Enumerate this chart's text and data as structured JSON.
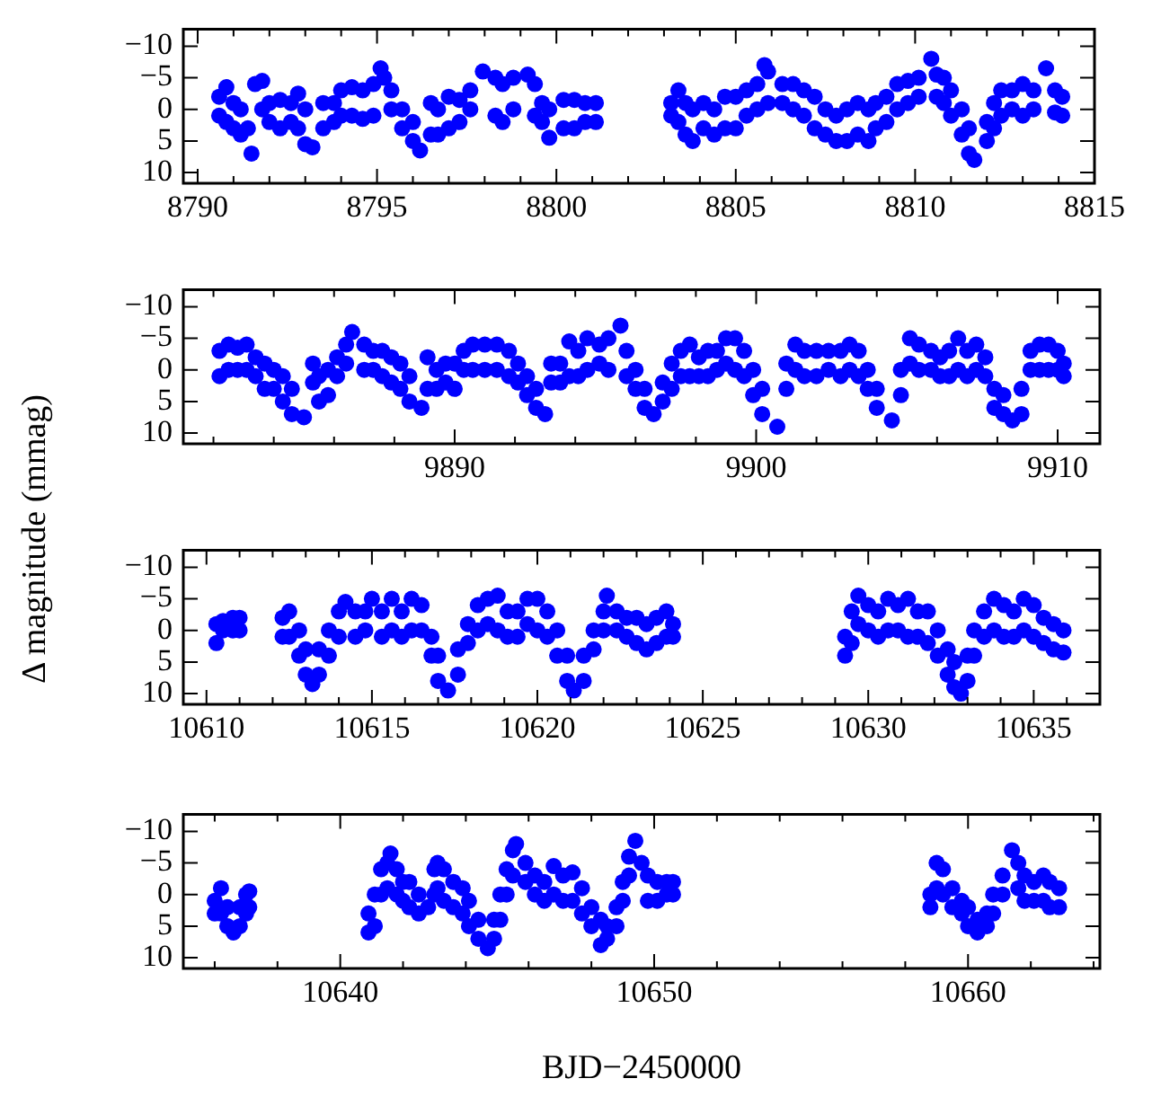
{
  "chart_data": [
    {
      "type": "scatter",
      "marker": "circle",
      "x": [
        8790.6,
        8790.6,
        8790.8,
        8790.8,
        8791.0,
        8791.0,
        8791.2,
        8791.2,
        8791.4,
        8791.5,
        8791.6,
        8791.8,
        8791.8,
        8792.0,
        8792.0,
        8792.3,
        8792.3,
        8792.6,
        8792.6,
        8792.8,
        8792.8,
        8793.0,
        8793.0,
        8793.2,
        8793.5,
        8793.5,
        8793.8,
        8793.8,
        8794.0,
        8794.0,
        8794.3,
        8794.3,
        8794.6,
        8794.6,
        8794.9,
        8794.9,
        8795.1,
        8795.2,
        8795.4,
        8795.4,
        8795.7,
        8795.7,
        8796.0,
        8796.0,
        8796.2,
        8796.5,
        8796.5,
        8796.7,
        8796.7,
        8797.0,
        8797.0,
        8797.3,
        8797.3,
        8797.6,
        8797.6,
        8797.95,
        8798.3,
        8798.3,
        8798.5,
        8798.5,
        8798.8,
        8798.8,
        8799.2,
        8799.4,
        8799.4,
        8799.6,
        8799.6,
        8799.8,
        8799.8,
        8800.2,
        8800.2,
        8800.5,
        8800.5,
        8800.8,
        8800.8,
        8801.1,
        8801.1,
        8803.2,
        8803.2,
        8803.4,
        8803.4,
        8803.6,
        8803.6,
        8803.8,
        8803.8,
        8804.1,
        8804.1,
        8804.4,
        8804.4,
        8804.7,
        8804.7,
        8805.0,
        8805.0,
        8805.3,
        8805.3,
        8805.6,
        8805.6,
        8805.8,
        8805.9,
        8805.9,
        8806.3,
        8806.3,
        8806.6,
        8806.6,
        8806.9,
        8806.9,
        8807.2,
        8807.2,
        8807.5,
        8807.5,
        8807.8,
        8807.8,
        8808.1,
        8808.1,
        8808.4,
        8808.4,
        8808.7,
        8808.7,
        8808.9,
        8808.9,
        8809.2,
        8809.2,
        8809.5,
        8809.5,
        8809.8,
        8809.8,
        8810.1,
        8810.1,
        8810.45,
        8810.6,
        8810.6,
        8810.8,
        8810.8,
        8811.0,
        8811.0,
        8811.3,
        8811.3,
        8811.5,
        8811.5,
        8811.65,
        8812.0,
        8812.0,
        8812.2,
        8812.2,
        8812.4,
        8812.4,
        8812.7,
        8812.7,
        8813.0,
        8813.0,
        8813.3,
        8813.3,
        8813.65,
        8813.9,
        8813.9,
        8814.1,
        8814.1
      ],
      "values": [
        -2,
        1,
        -3.5,
        2,
        -1,
        3,
        0,
        4,
        3,
        7,
        -4,
        -4.5,
        0,
        -1,
        2,
        -1.5,
        3,
        -1,
        2,
        -2.5,
        3,
        0,
        5.5,
        6,
        -1,
        3,
        -1,
        2,
        -3,
        1,
        -3.5,
        1,
        -3,
        1.5,
        -4,
        1,
        -6.5,
        -5,
        -3,
        0,
        0,
        3,
        2,
        5,
        6.5,
        -1,
        4,
        0,
        4,
        -2,
        3,
        -1.5,
        2,
        -3,
        0,
        -6,
        -5,
        1,
        -4,
        2,
        -5,
        0,
        -5.5,
        -4,
        1,
        -1,
        2,
        0,
        4.5,
        -1.5,
        3,
        -1.5,
        3,
        -1,
        2,
        -1,
        2,
        -1,
        1,
        -3,
        2,
        -1,
        4,
        0,
        5,
        -1,
        3,
        0,
        4,
        -2,
        3,
        -2,
        3,
        -3,
        1,
        -4,
        0,
        -7,
        -6,
        -1,
        -4,
        -1,
        -4,
        0,
        -3,
        1,
        -2,
        3,
        0,
        4,
        1,
        5,
        0,
        5,
        -1,
        4,
        0,
        5,
        -1,
        3,
        -2,
        2,
        -4,
        0,
        -4.5,
        -1,
        -5,
        -2,
        -8,
        -5.5,
        -2,
        -5,
        -1,
        -3,
        1,
        0,
        4,
        3,
        7,
        8,
        2,
        5,
        -1,
        3,
        -3,
        1,
        -3,
        0,
        -4,
        1,
        -3,
        0,
        -6.5,
        -3,
        0.5,
        -2,
        1
      ],
      "color": "#0000ff",
      "xlim": [
        8789.6,
        8815
      ],
      "ylim": [
        11.7,
        -12.7
      ],
      "yticks": [
        -10,
        -5,
        0,
        5,
        10
      ],
      "xticks": [
        8790,
        {
          "value": 8791,
          "label": null
        },
        {
          "value": 8792,
          "label": null
        },
        {
          "value": 8793,
          "label": null
        },
        {
          "value": 8794,
          "label": null
        },
        8795,
        {
          "value": 8796,
          "label": null
        },
        {
          "value": 8797,
          "label": null
        },
        {
          "value": 8798,
          "label": null
        },
        {
          "value": 8799,
          "label": null
        },
        8800,
        {
          "value": 8801,
          "label": null
        },
        {
          "value": 8802,
          "label": null
        },
        {
          "value": 8803,
          "label": null
        },
        {
          "value": 8804,
          "label": null
        },
        8805,
        {
          "value": 8806,
          "label": null
        },
        {
          "value": 8807,
          "label": null
        },
        {
          "value": 8808,
          "label": null
        },
        {
          "value": 8809,
          "label": null
        },
        8810,
        {
          "value": 8811,
          "label": null
        },
        {
          "value": 8812,
          "label": null
        },
        {
          "value": 8813,
          "label": null
        },
        {
          "value": 8814,
          "label": null
        },
        8815
      ]
    },
    {
      "type": "scatter",
      "marker": "circle",
      "x": [
        9882.2,
        9882.2,
        9882.5,
        9882.5,
        9882.8,
        9882.8,
        9883.1,
        9883.1,
        9883.4,
        9883.4,
        9883.7,
        9883.7,
        9884.0,
        9884.0,
        9884.3,
        9884.3,
        9884.6,
        9884.6,
        9885.0,
        9885.3,
        9885.3,
        9885.5,
        9885.5,
        9885.8,
        9885.8,
        9886.1,
        9886.1,
        9886.4,
        9886.4,
        9886.6,
        9887.0,
        9887.0,
        9887.3,
        9887.3,
        9887.6,
        9887.6,
        9887.9,
        9887.9,
        9888.2,
        9888.2,
        9888.5,
        9888.5,
        9888.9,
        9889.1,
        9889.1,
        9889.4,
        9889.4,
        9889.7,
        9889.7,
        9890.0,
        9890.0,
        9890.3,
        9890.3,
        9890.6,
        9890.6,
        9891.0,
        9891.0,
        9891.4,
        9891.4,
        9891.8,
        9891.8,
        9892.1,
        9892.1,
        9892.4,
        9892.4,
        9892.7,
        9892.7,
        9893.0,
        9893.2,
        9893.2,
        9893.5,
        9893.5,
        9893.8,
        9893.8,
        9894.1,
        9894.1,
        9894.4,
        9894.4,
        9894.8,
        9894.8,
        9895.1,
        9895.1,
        9895.5,
        9895.7,
        9895.7,
        9896.0,
        9896.0,
        9896.3,
        9896.3,
        9896.6,
        9896.9,
        9896.9,
        9897.2,
        9897.2,
        9897.5,
        9897.5,
        9897.8,
        9897.8,
        9898.1,
        9898.1,
        9898.4,
        9898.4,
        9898.7,
        9898.7,
        9899.0,
        9899.0,
        9899.3,
        9899.3,
        9899.6,
        9899.6,
        9899.9,
        9899.9,
        9900.2,
        9900.2,
        9900.7,
        9901.0,
        9901.0,
        9901.3,
        9901.3,
        9901.6,
        9901.6,
        9902.0,
        9902.0,
        9902.4,
        9902.4,
        9902.8,
        9902.8,
        9903.1,
        9903.1,
        9903.4,
        9903.4,
        9903.7,
        9903.7,
        9904.0,
        9904.0,
        9904.5,
        9904.8,
        9904.8,
        9905.1,
        9905.1,
        9905.4,
        9905.4,
        9905.8,
        9905.8,
        9906.1,
        9906.1,
        9906.4,
        9906.4,
        9906.7,
        9906.7,
        9907.0,
        9907.0,
        9907.3,
        9907.3,
        9907.6,
        9907.6,
        9907.9,
        9907.9,
        9908.2,
        9908.2,
        9908.5,
        9908.8,
        9908.8,
        9909.1,
        9909.1,
        9909.4,
        9909.4,
        9909.7,
        9909.7,
        9910.0,
        9910.0,
        9910.2,
        9910.2
      ],
      "values": [
        -3,
        1,
        -4,
        0,
        -3.5,
        0,
        -4,
        0,
        -2,
        1,
        -1,
        3,
        0,
        3,
        1,
        5,
        3,
        7,
        7.5,
        -1,
        2,
        1,
        5,
        0,
        4,
        -2,
        1,
        -4,
        -1,
        -6,
        -4,
        0,
        -3,
        0,
        -3,
        1,
        -2,
        2,
        -1,
        3,
        1,
        5,
        6,
        -2,
        3,
        0,
        3,
        -1,
        2,
        -1,
        3,
        -3,
        0,
        -4,
        0,
        -4,
        0,
        -4,
        0,
        -3,
        1,
        -1,
        2,
        1,
        4,
        3,
        6,
        7,
        -1,
        2,
        -1,
        2,
        -4.5,
        1,
        -3,
        1,
        -5,
        0,
        -4,
        -1,
        -5,
        0,
        -7,
        -3,
        1,
        0,
        3,
        3,
        6,
        7,
        2,
        5,
        -1,
        3,
        -3,
        1,
        -4,
        1,
        -2,
        1,
        -3,
        1,
        -3,
        0,
        -5,
        -1,
        -5,
        0,
        -3,
        1,
        0,
        4,
        3,
        7,
        9,
        -1,
        3,
        -4,
        0,
        -3,
        1,
        -3,
        1,
        -3,
        0,
        -3,
        1,
        -4,
        0,
        -3,
        1,
        0,
        3,
        3,
        6,
        8,
        0,
        4,
        -5,
        -1,
        -4,
        0,
        -3,
        0,
        -2,
        1,
        -3,
        1,
        -5,
        0,
        -3,
        1,
        -4,
        0,
        -2,
        1,
        3,
        6,
        4,
        7,
        8,
        3,
        7,
        -3,
        0,
        -4,
        0,
        -4,
        0,
        -3,
        0,
        -1,
        1
      ],
      "color": "#0000ff",
      "xlim": [
        9881,
        9911.4
      ],
      "ylim": [
        11.7,
        -12.7
      ],
      "xticks": [
        {
          "value": 9882,
          "label": null
        },
        {
          "value": 9884,
          "label": null
        },
        {
          "value": 9886,
          "label": null
        },
        {
          "value": 9888,
          "label": null
        },
        9890,
        {
          "value": 9892,
          "label": null
        },
        {
          "value": 9894,
          "label": null
        },
        {
          "value": 9896,
          "label": null
        },
        {
          "value": 9898,
          "label": null
        },
        9900,
        {
          "value": 9902,
          "label": null
        },
        {
          "value": 9904,
          "label": null
        },
        {
          "value": 9906,
          "label": null
        },
        {
          "value": 9908,
          "label": null
        },
        9910
      ],
      "yticks": [
        -10,
        -5,
        0,
        5,
        10
      ]
    },
    {
      "type": "scatter",
      "ylabel": "Δ magnitude (mmag)",
      "marker": "circle",
      "x": [
        10610.3,
        10610.3,
        10610.5,
        10610.5,
        10610.8,
        10610.8,
        10611.0,
        10611.0,
        10612.3,
        10612.3,
        10612.5,
        10612.5,
        10612.8,
        10612.8,
        10613.0,
        10613.0,
        10613.2,
        10613.4,
        10613.4,
        10613.7,
        10613.7,
        10614.0,
        10614.0,
        10614.2,
        10614.5,
        10614.5,
        10614.8,
        10614.8,
        10615.0,
        10615.3,
        10615.3,
        10615.6,
        10615.6,
        10615.9,
        10615.9,
        10616.2,
        10616.2,
        10616.5,
        10616.5,
        10616.8,
        10616.8,
        10617.0,
        10617.0,
        10617.3,
        10617.6,
        10617.6,
        10617.9,
        10617.9,
        10618.2,
        10618.2,
        10618.5,
        10618.5,
        10618.8,
        10618.8,
        10619.1,
        10619.1,
        10619.4,
        10619.4,
        10619.7,
        10619.7,
        10620.0,
        10620.0,
        10620.3,
        10620.3,
        10620.6,
        10620.6,
        10620.9,
        10620.9,
        10621.1,
        10621.4,
        10621.4,
        10621.7,
        10621.7,
        10622.0,
        10622.0,
        10622.1,
        10622.4,
        10622.4,
        10622.7,
        10622.7,
        10623.0,
        10623.0,
        10623.3,
        10623.3,
        10623.6,
        10623.6,
        10623.9,
        10623.9,
        10624.1,
        10624.1,
        10629.3,
        10629.3,
        10629.5,
        10629.5,
        10629.7,
        10629.7,
        10630.0,
        10630.0,
        10630.3,
        10630.3,
        10630.6,
        10630.6,
        10630.9,
        10630.9,
        10631.2,
        10631.2,
        10631.5,
        10631.5,
        10631.8,
        10631.8,
        10632.1,
        10632.1,
        10632.4,
        10632.4,
        10632.6,
        10632.6,
        10632.8,
        10633.0,
        10633.0,
        10633.2,
        10633.2,
        10633.5,
        10633.5,
        10633.8,
        10633.8,
        10634.1,
        10634.1,
        10634.4,
        10634.4,
        10634.7,
        10634.7,
        10635.0,
        10635.0,
        10635.3,
        10635.3,
        10635.6,
        10635.6,
        10635.9,
        10635.9
      ],
      "values": [
        -1,
        2,
        -1.5,
        0,
        -2,
        0,
        -2,
        0,
        -2,
        1,
        -3,
        1,
        0,
        4,
        3,
        7,
        8.5,
        3,
        7,
        0,
        4,
        -3,
        1,
        -4.5,
        -3,
        1,
        -3,
        0,
        -5,
        -3,
        1,
        -5,
        0,
        -3,
        1,
        -5,
        0,
        -4,
        0,
        1,
        4,
        4,
        8,
        9.5,
        3,
        7,
        -1,
        2,
        -4,
        0,
        -5,
        -1,
        -5.5,
        0,
        -3,
        1,
        -3,
        1,
        -5,
        -1,
        -5,
        0,
        -3,
        1,
        0,
        4,
        4,
        8,
        9.5,
        4,
        8,
        0,
        3,
        -3,
        0,
        -5.5,
        -3,
        0,
        -2,
        1,
        -2,
        2,
        -1,
        3,
        -2,
        2,
        -3,
        1,
        -1,
        1,
        1,
        4,
        -3,
        2,
        -5.5,
        -1,
        -4,
        0,
        -3,
        1,
        -5,
        0,
        -4,
        0,
        -5,
        1,
        -3,
        1,
        -3,
        2,
        0,
        4,
        3,
        7,
        5,
        9,
        10,
        4,
        8,
        0,
        4,
        -3,
        1,
        -5,
        0,
        -4,
        1,
        -3,
        1,
        -5,
        0,
        -4,
        1,
        -2,
        2,
        -1,
        3,
        0,
        3.5
      ],
      "color": "#0000ff",
      "xlim": [
        10609.3,
        10637
      ],
      "ylim": [
        11.7,
        -12.7
      ],
      "xticks": [
        10610,
        {
          "value": 10611,
          "label": null
        },
        {
          "value": 10612,
          "label": null
        },
        {
          "value": 10613,
          "label": null
        },
        {
          "value": 10614,
          "label": null
        },
        10615,
        {
          "value": 10616,
          "label": null
        },
        {
          "value": 10617,
          "label": null
        },
        {
          "value": 10618,
          "label": null
        },
        {
          "value": 10619,
          "label": null
        },
        10620,
        {
          "value": 10621,
          "label": null
        },
        {
          "value": 10622,
          "label": null
        },
        {
          "value": 10623,
          "label": null
        },
        {
          "value": 10624,
          "label": null
        },
        10625,
        {
          "value": 10626,
          "label": null
        },
        {
          "value": 10627,
          "label": null
        },
        {
          "value": 10628,
          "label": null
        },
        {
          "value": 10629,
          "label": null
        },
        10630,
        {
          "value": 10631,
          "label": null
        },
        {
          "value": 10632,
          "label": null
        },
        {
          "value": 10633,
          "label": null
        },
        {
          "value": 10634,
          "label": null
        },
        10635,
        {
          "value": 10636,
          "label": null
        }
      ],
      "yticks": [
        -10,
        -5,
        0,
        5,
        10
      ]
    },
    {
      "type": "scatter",
      "xlabel": "BJD−2450000",
      "marker": "circle",
      "x": [
        10636.0,
        10636.0,
        10636.2,
        10636.2,
        10636.4,
        10636.4,
        10636.6,
        10636.8,
        10636.8,
        10637.0,
        10637.0,
        10637.1,
        10637.1,
        10640.9,
        10640.9,
        10641.1,
        10641.1,
        10641.3,
        10641.3,
        10641.5,
        10641.5,
        10641.6,
        10641.8,
        10641.8,
        10642.0,
        10642.0,
        10642.2,
        10642.2,
        10642.5,
        10642.5,
        10642.8,
        10643.0,
        10643.0,
        10643.1,
        10643.1,
        10643.3,
        10643.3,
        10643.6,
        10643.6,
        10643.9,
        10643.9,
        10644.1,
        10644.1,
        10644.4,
        10644.4,
        10644.7,
        10644.9,
        10644.9,
        10645.1,
        10645.1,
        10645.3,
        10645.3,
        10645.5,
        10645.5,
        10645.6,
        10645.9,
        10645.9,
        10646.2,
        10646.2,
        10646.5,
        10646.5,
        10646.8,
        10646.8,
        10647.1,
        10647.1,
        10647.4,
        10647.4,
        10647.7,
        10647.7,
        10648.0,
        10648.0,
        10648.3,
        10648.3,
        10648.5,
        10648.5,
        10648.8,
        10648.8,
        10649.0,
        10649.0,
        10649.2,
        10649.2,
        10649.4,
        10649.6,
        10649.8,
        10649.8,
        10650.1,
        10650.1,
        10650.4,
        10650.4,
        10650.6,
        10650.6,
        10658.8,
        10658.8,
        10659.0,
        10659.0,
        10659.2,
        10659.2,
        10659.5,
        10659.5,
        10659.8,
        10659.8,
        10660.0,
        10660.0,
        10660.3,
        10660.3,
        10660.6,
        10660.6,
        10660.8,
        10660.8,
        10661.1,
        10661.1,
        10661.4,
        10661.6,
        10661.6,
        10661.8,
        10661.8,
        10662.1,
        10662.1,
        10662.4,
        10662.4,
        10662.6,
        10662.6,
        10662.9,
        10662.9
      ],
      "values": [
        1,
        3,
        -1,
        3,
        2,
        5,
        6,
        2,
        5,
        0,
        3,
        -0.5,
        2,
        3,
        6,
        0,
        5,
        -4,
        0,
        -5,
        -1,
        -6.5,
        -4,
        0,
        -2,
        1,
        -2,
        2,
        0,
        3,
        2,
        -4,
        0,
        -5,
        -1,
        -4,
        1,
        -2,
        2,
        -1,
        3,
        1,
        5,
        4,
        7,
        8.5,
        4,
        7,
        0,
        4,
        -4,
        0,
        -7,
        -3,
        -8,
        -5,
        -2,
        -3,
        0,
        -2,
        1,
        -4.5,
        0,
        -3,
        1,
        -3.5,
        1,
        -1,
        3,
        2,
        5,
        4,
        8,
        5,
        7,
        2,
        5,
        -2,
        1,
        -6,
        -3,
        -8.5,
        -5,
        -3,
        1,
        -2,
        1,
        -2,
        0,
        -2,
        0,
        0,
        2,
        -5,
        -1,
        -4,
        0,
        -1,
        2,
        1,
        3,
        2,
        5,
        4,
        6,
        3,
        5,
        0,
        3,
        -3,
        0,
        -7,
        -5,
        -1,
        -3,
        1,
        -2,
        1,
        -3,
        1,
        -2,
        2,
        -1,
        2
      ],
      "color": "#0000ff",
      "xlim": [
        10635,
        10664.2
      ],
      "ylim": [
        11.7,
        -12.7
      ],
      "xticks": [
        {
          "value": 10636,
          "label": null
        },
        {
          "value": 10638,
          "label": null
        },
        10640,
        {
          "value": 10642,
          "label": null
        },
        {
          "value": 10644,
          "label": null
        },
        {
          "value": 10646,
          "label": null
        },
        {
          "value": 10648,
          "label": null
        },
        10650,
        {
          "value": 10652,
          "label": null
        },
        {
          "value": 10654,
          "label": null
        },
        {
          "value": 10656,
          "label": null
        },
        {
          "value": 10658,
          "label": null
        },
        10660,
        {
          "value": 10662,
          "label": null
        },
        {
          "value": 10664,
          "label": null
        }
      ],
      "yticks": [
        -10,
        -5,
        0,
        5,
        10
      ]
    }
  ]
}
